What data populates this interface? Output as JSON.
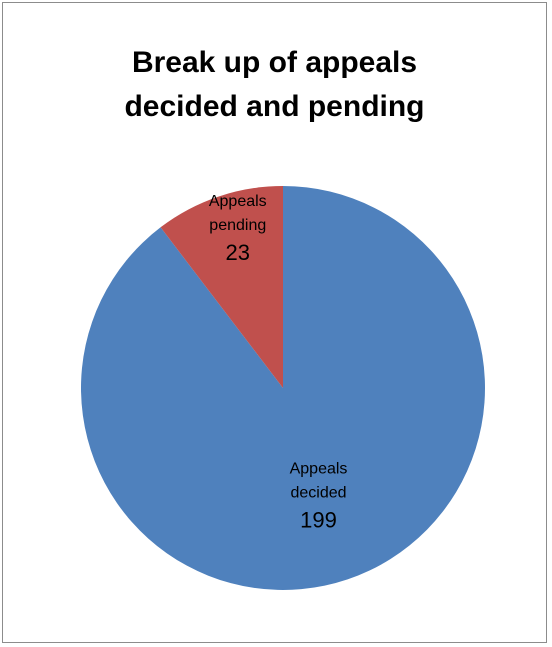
{
  "chart_data": {
    "type": "pie",
    "title_lines": [
      "Break up of appeals",
      "decided and pending"
    ],
    "slices": [
      {
        "label_lines": [
          "Appeals",
          "decided"
        ],
        "value": 199,
        "color": "#4f81bd"
      },
      {
        "label_lines": [
          "Appeals",
          "pending"
        ],
        "value": 23,
        "color": "#c0504d"
      }
    ],
    "start_angle_deg": 0,
    "direction": "clockwise",
    "legend": "none",
    "data_labels": "inside"
  }
}
